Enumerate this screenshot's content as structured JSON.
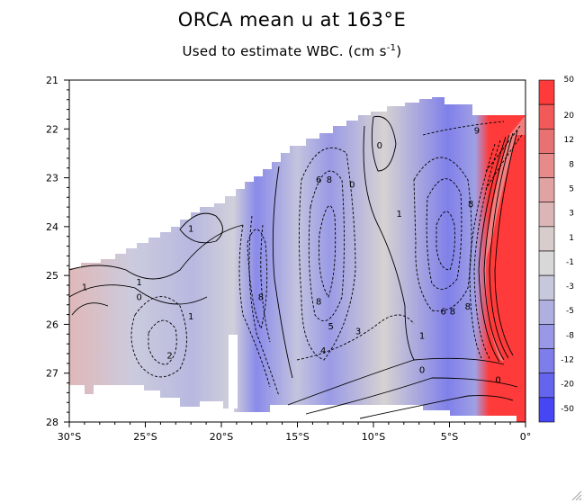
{
  "chart_data": {
    "type": "heatmap",
    "title": "ORCA mean u at 163°E",
    "subtitle_text": "Used to estimate WBC. (cm s",
    "subtitle_exponent": "-1",
    "subtitle_close": ")",
    "xlabel": "",
    "ylabel": "",
    "x_ticks": [
      {
        "value": -30,
        "label": "30°S"
      },
      {
        "value": -25,
        "label": "25°S"
      },
      {
        "value": -20,
        "label": "20°S"
      },
      {
        "value": -15,
        "label": "15°S"
      },
      {
        "value": -10,
        "label": "10°S"
      },
      {
        "value": -5,
        "label": "5°S"
      },
      {
        "value": 0,
        "label": "0°"
      }
    ],
    "xlim": [
      -30,
      0
    ],
    "y_ticks": [
      21,
      22,
      23,
      24,
      25,
      26,
      27,
      28
    ],
    "ylim": [
      21,
      28
    ],
    "y_reversed": true,
    "colorbar_levels": [
      "50",
      "20",
      "12",
      "8",
      "5",
      "3",
      "1",
      "-1",
      "-3",
      "-5",
      "-8",
      "-12",
      "-20",
      "-50"
    ],
    "colorbar_colors": [
      "#ff3a3a",
      "#f25a5a",
      "#e87272",
      "#e68a8a",
      "#e0a2a2",
      "#dcb6b6",
      "#d9cccc",
      "#d8d8d8",
      "#c8c8dc",
      "#b0b0e0",
      "#9898e6",
      "#7e7eea",
      "#6464ee",
      "#4646f4"
    ],
    "contour_labels": [
      {
        "x": -29.0,
        "y": 25.3,
        "text": "1"
      },
      {
        "x": -25.4,
        "y": 25.2,
        "text": "1"
      },
      {
        "x": -25.4,
        "y": 25.5,
        "text": "0"
      },
      {
        "x": -22.0,
        "y": 25.9,
        "text": "1"
      },
      {
        "x": -22.0,
        "y": 24.1,
        "text": "1"
      },
      {
        "x": -23.4,
        "y": 26.7,
        "text": "2"
      },
      {
        "x": -17.4,
        "y": 25.5,
        "text": "8"
      },
      {
        "x": -13.6,
        "y": 25.6,
        "text": "8"
      },
      {
        "x": -13.3,
        "y": 26.6,
        "text": "4"
      },
      {
        "x": -12.8,
        "y": 26.1,
        "text": "5"
      },
      {
        "x": -11.0,
        "y": 26.2,
        "text": "3"
      },
      {
        "x": -13.6,
        "y": 23.1,
        "text": "6"
      },
      {
        "x": -12.9,
        "y": 23.1,
        "text": "8"
      },
      {
        "x": -11.4,
        "y": 23.2,
        "text": "0"
      },
      {
        "x": -9.6,
        "y": 22.4,
        "text": "0"
      },
      {
        "x": -8.3,
        "y": 23.8,
        "text": "1"
      },
      {
        "x": -6.8,
        "y": 26.3,
        "text": "1"
      },
      {
        "x": -6.8,
        "y": 27.0,
        "text": "0"
      },
      {
        "x": -5.4,
        "y": 25.8,
        "text": "6"
      },
      {
        "x": -4.8,
        "y": 25.8,
        "text": "8"
      },
      {
        "x": -3.8,
        "y": 25.7,
        "text": "8"
      },
      {
        "x": -3.6,
        "y": 23.6,
        "text": "8"
      },
      {
        "x": -3.2,
        "y": 22.1,
        "text": "9"
      },
      {
        "x": -1.8,
        "y": 27.2,
        "text": "0"
      }
    ]
  }
}
